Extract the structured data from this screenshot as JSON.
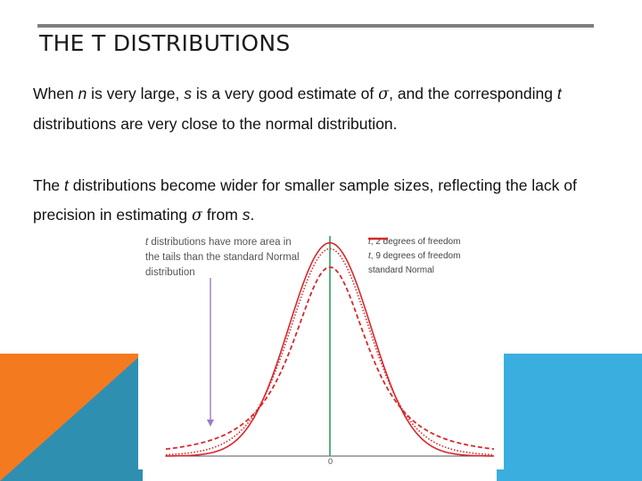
{
  "slide": {
    "title": "THE T DISTRIBUTIONS",
    "para1": {
      "t1": "When ",
      "v1": "n",
      "t2": " is very large, ",
      "v2": "s",
      "t3": " is a very good estimate of ",
      "sym": "σ",
      "t4": ", and the corresponding ",
      "v3": "t",
      "t5": " distributions are very close to the normal distribution."
    },
    "para2": {
      "t1": "The ",
      "v1": "t",
      "t2": " distributions become wider for smaller sample sizes, reflecting the lack of precision in estimating ",
      "sym": "σ",
      "t3": " from ",
      "v2": "s",
      "t4": "."
    }
  },
  "figure": {
    "annotation": {
      "v": "t",
      "text": " distributions have more area in the tails than the standard Normal distribution"
    },
    "legend": [
      {
        "v": "t",
        "label": ", 2 degrees of freedom",
        "style": "dashed"
      },
      {
        "v": "t",
        "label": ", 9 degrees of freedom",
        "style": "dotted"
      },
      {
        "v": "",
        "label": "standard Normal",
        "style": "solid"
      }
    ],
    "x_label": "0",
    "colors": {
      "curve": "#d6282c",
      "center_line": "#2e9e5a",
      "arrow": "#9a7cc4"
    }
  },
  "decor_colors": {
    "orange": "#f47a20",
    "teal": "#2f8fb1",
    "blue": "#3aaede",
    "rule": "#7f7f7f"
  }
}
